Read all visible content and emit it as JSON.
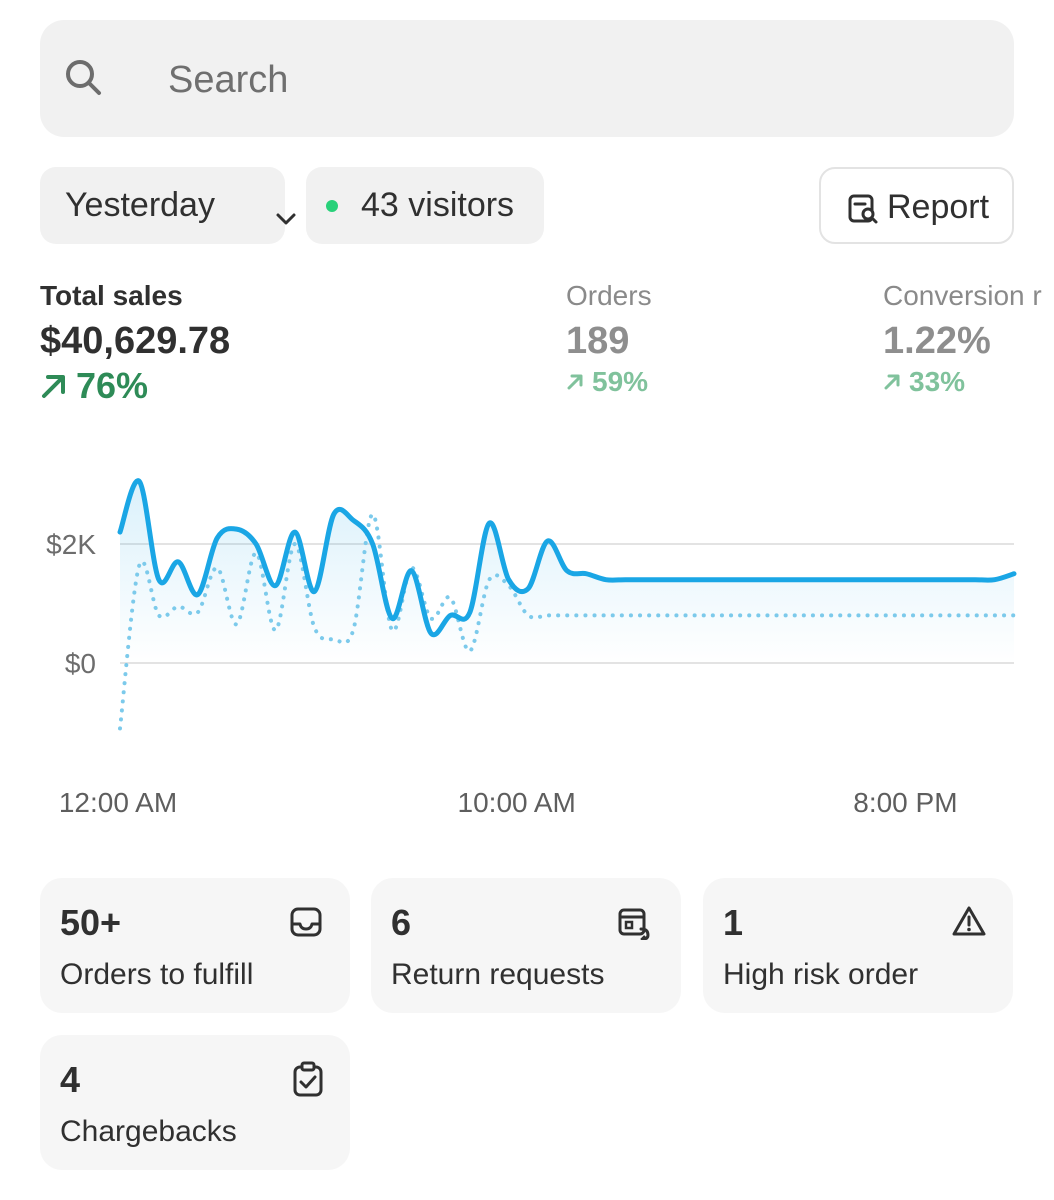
{
  "search": {
    "placeholder": "Search"
  },
  "filters": {
    "date_label": "Yesterday",
    "visitors_label": "43 visitors",
    "report_label": "Report"
  },
  "metrics": {
    "total_sales": {
      "label": "Total sales",
      "value": "$40,629.78",
      "delta": "76%"
    },
    "orders": {
      "label": "Orders",
      "value": "189",
      "delta": "59%"
    },
    "conversion": {
      "label": "Conversion r",
      "value": "1.22%",
      "delta": "33%"
    }
  },
  "colors": {
    "accent": "#1aa6e5",
    "positive": "#2e8b57",
    "positive_muted": "#80c29c",
    "live_dot": "#29d17a"
  },
  "chart_data": {
    "type": "line",
    "y_ticks": [
      "$2K",
      "$0"
    ],
    "y_tick_values": [
      2000,
      0
    ],
    "x_ticks": [
      "12:00 AM",
      "10:00 AM",
      "8:00 PM"
    ],
    "x_tick_hours": [
      0,
      10,
      20
    ],
    "series": [
      {
        "style": "solid",
        "hours": [
          0,
          0.5,
          1,
          1.5,
          2,
          2.5,
          3,
          3.5,
          4,
          4.5,
          5,
          5.5,
          6,
          6.5,
          7,
          7.5,
          8,
          8.5,
          9,
          9.5,
          10,
          10.5,
          11,
          11.5,
          12,
          12.5,
          13,
          13.5,
          14,
          14.5,
          15,
          15.5,
          16,
          16.5,
          17,
          17.5,
          18,
          18.5,
          19,
          19.5,
          20,
          20.5,
          21,
          21.5,
          22,
          22.5,
          23
        ],
        "values": [
          2200,
          3050,
          1400,
          1700,
          1150,
          2100,
          2250,
          2000,
          1300,
          2200,
          1200,
          2500,
          2400,
          2000,
          750,
          1550,
          500,
          800,
          850,
          2350,
          1400,
          1250,
          2050,
          1550,
          1500,
          1400,
          1400,
          1400,
          1400,
          1400,
          1400,
          1400,
          1400,
          1400,
          1400,
          1400,
          1400,
          1400,
          1400,
          1400,
          1400,
          1400,
          1400,
          1400,
          1400,
          1400,
          1500
        ]
      },
      {
        "style": "dotted",
        "hours": [
          0,
          0.5,
          1,
          1.5,
          2,
          2.5,
          3,
          3.5,
          4,
          4.5,
          5,
          5.5,
          6,
          6.5,
          7,
          7.5,
          8,
          8.5,
          9,
          9.5,
          10,
          10.5,
          11,
          11.5,
          12,
          12.5,
          13,
          13.5,
          14,
          14.5,
          15,
          15.5,
          16,
          16.5,
          17,
          17.5,
          18,
          18.5,
          19,
          19.5,
          20,
          20.5,
          21,
          21.5,
          22,
          22.5,
          23
        ],
        "values": [
          -1100,
          1650,
          800,
          950,
          850,
          1600,
          650,
          1850,
          550,
          2000,
          600,
          400,
          550,
          2500,
          550,
          1600,
          750,
          1100,
          200,
          1400,
          1300,
          800,
          800,
          800,
          800,
          800,
          800,
          800,
          800,
          800,
          800,
          800,
          800,
          800,
          800,
          800,
          800,
          800,
          800,
          800,
          800,
          800,
          800,
          800,
          800,
          800,
          800
        ]
      }
    ],
    "ylim": [
      -1100,
      3100
    ],
    "grid": true
  },
  "cards": [
    {
      "number": "50+",
      "label": "Orders to fulfill",
      "icon": "inbox-icon"
    },
    {
      "number": "6",
      "label": "Return requests",
      "icon": "return-box-icon"
    },
    {
      "number": "1",
      "label": "High risk order",
      "icon": "warning-icon"
    },
    {
      "number": "4",
      "label": "Chargebacks",
      "icon": "clipboard-check-icon"
    }
  ]
}
